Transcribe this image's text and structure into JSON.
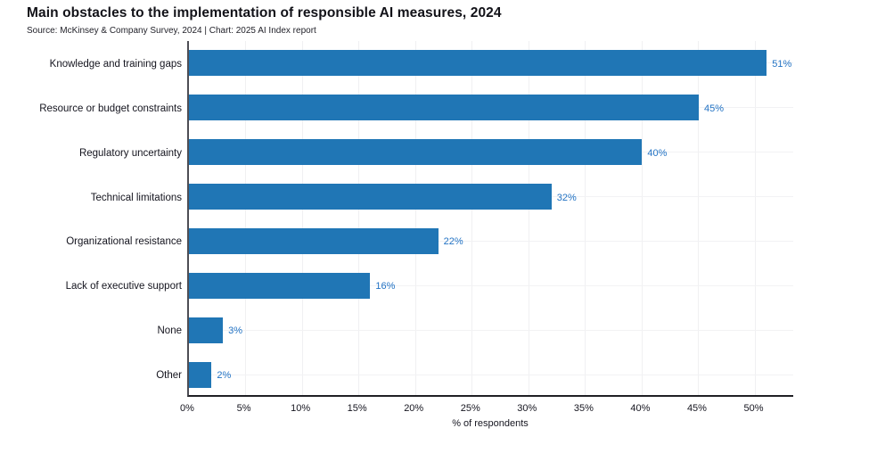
{
  "chart_data": {
    "type": "bar",
    "orientation": "horizontal",
    "title": "Main obstacles to the implementation of responsible AI measures, 2024",
    "subtitle": "Source: McKinsey & Company Survey, 2024 | Chart: 2025 AI Index report",
    "categories": [
      "Knowledge and training gaps",
      "Resource or budget constraints",
      "Regulatory uncertainty",
      "Technical limitations",
      "Organizational resistance",
      "Lack of executive support",
      "None",
      "Other"
    ],
    "values": [
      51,
      45,
      40,
      32,
      22,
      16,
      3,
      2
    ],
    "value_labels": [
      "51%",
      "45%",
      "40%",
      "32%",
      "22%",
      "16%",
      "3%",
      "2%"
    ],
    "xlabel": "% of respondents",
    "ylabel": "",
    "xlim": [
      0,
      53.5
    ],
    "xticks": [
      0,
      5,
      10,
      15,
      20,
      25,
      30,
      35,
      40,
      45,
      50
    ],
    "xtick_labels": [
      "0%",
      "5%",
      "10%",
      "15%",
      "20%",
      "25%",
      "30%",
      "35%",
      "40%",
      "45%",
      "50%"
    ],
    "grid": true,
    "legend": "none",
    "bar_color": "#2076b5",
    "value_label_color": "#2373c4"
  }
}
